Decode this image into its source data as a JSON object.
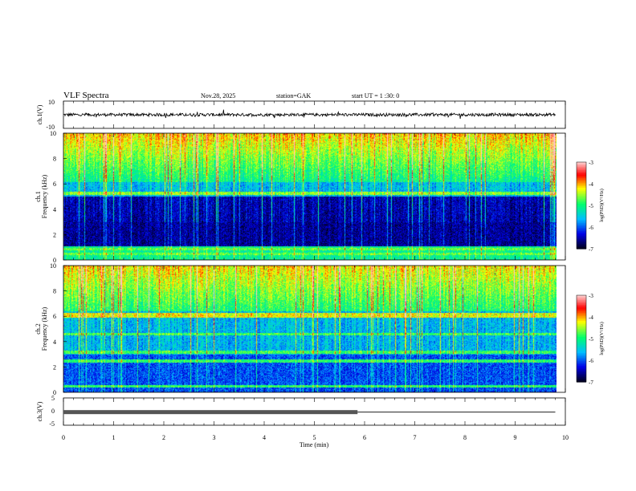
{
  "header": {
    "title": "VLF  Spectra",
    "date": "Nov.28, 2025",
    "station": "station=GAK",
    "start_ut": "start  UT  =   1  :30: 0"
  },
  "chart_data": [
    {
      "type": "line",
      "panel": "ch1-waveform",
      "ylabel": "ch.1(V)",
      "ylim": [
        -10,
        10
      ],
      "yticks": [
        "10",
        "-10"
      ],
      "xlim": [
        0,
        10
      ],
      "series": [
        {
          "values_note": "",
          "mean": 0,
          "amplitude": 1.5
        }
      ]
    },
    {
      "type": "heatmap",
      "panel": "ch1-spectrogram",
      "ylabel": "ch.1",
      "ylabel2": "Frequency  (kHz)",
      "ylim": [
        0,
        10
      ],
      "yticks": [
        "0",
        "2",
        "4",
        "6",
        "8",
        "10"
      ],
      "xlim": [
        0,
        10
      ],
      "colorbar": {
        "label": "log(PSD)(V²/Hz)",
        "ticks": [
          "-3",
          "-4",
          "-5",
          "-6",
          "-7"
        ],
        "range": [
          -7,
          -3
        ]
      }
    },
    {
      "type": "heatmap",
      "panel": "ch2-spectrogram",
      "ylabel": "ch.2",
      "ylabel2": "Frequency  (kHz)",
      "ylim": [
        0,
        10
      ],
      "yticks": [
        "0",
        "2",
        "4",
        "6",
        "8",
        "10"
      ],
      "xlim": [
        0,
        10
      ],
      "colorbar": {
        "label": "log(PSD)(V²/Hz)",
        "ticks": [
          "-3",
          "-4",
          "-5",
          "-6",
          "-7"
        ],
        "range": [
          -7,
          -3
        ]
      }
    },
    {
      "type": "line",
      "panel": "ch3-waveform",
      "ylabel": "ch.3(V)",
      "ylim": [
        -5,
        5
      ],
      "yticks": [
        "5",
        "0",
        "-5"
      ],
      "xlim": [
        0,
        10
      ],
      "xticks": [
        "0",
        "1",
        "2",
        "3",
        "4",
        "5",
        "6",
        "7",
        "8",
        "9",
        "10"
      ],
      "xlabel": "Time  (min)",
      "series": [
        {
          "segments": [
            {
              "x": [
                0,
                5.86
              ],
              "y": -0.2,
              "style": "pulsed"
            },
            {
              "x": [
                5.86,
                9.8
              ],
              "y": -0.2,
              "style": "flat"
            }
          ]
        }
      ]
    }
  ],
  "colors": {
    "background": "#ffffff",
    "axis": "#000000",
    "colormap": [
      "#000010",
      "#0000ff",
      "#00ccff",
      "#00ff80",
      "#ffff00",
      "#ff0000",
      "#ffc0c0"
    ]
  }
}
